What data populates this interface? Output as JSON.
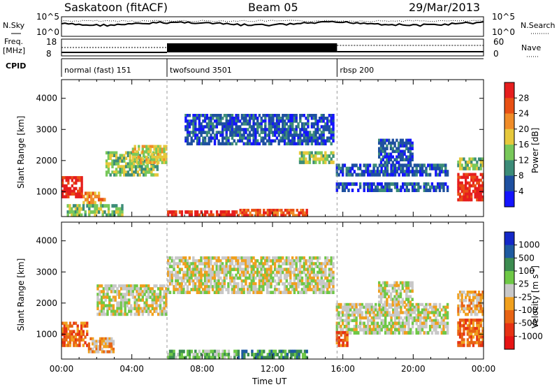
{
  "header": {
    "station": "Saskatoon (fitACF)",
    "beam": "Beam 05",
    "date": "29/Mar/2013"
  },
  "strip_labels": {
    "nsky": "N.Sky",
    "nsearch": "N.Search",
    "freq_line1": "Freq.",
    "freq_line2": "[MHz]",
    "nave": "Nave",
    "cpid": "CPID",
    "nsky_top": "10^5",
    "nsky_bottom": "10^0",
    "nsearch_top": "10^5",
    "nsearch_bottom": "10^0",
    "freq_top": "18",
    "freq_bottom": "8",
    "nave_top": "60",
    "nave_bottom": "0"
  },
  "cpid_segments": [
    {
      "label": "normal (fast) 151",
      "start_h": 0
    },
    {
      "label": "twofsound 3501",
      "start_h": 6.0
    },
    {
      "label": "rbsp 200",
      "start_h": 15.67
    }
  ],
  "chart_data": [
    {
      "type": "heatmap",
      "name": "Power",
      "ylabel": "Slant Range [km]",
      "xlabel": "",
      "xlim": [
        0,
        24
      ],
      "ylim": [
        200,
        4600
      ],
      "yticks": [
        "1000",
        "2000",
        "3000",
        "4000"
      ],
      "colorbar_label": "Power [dB]",
      "colorbar_ticks": [
        "4",
        "8",
        "12",
        "16",
        "20",
        "24",
        "28"
      ],
      "colors": [
        "#1414ff",
        "#1e50a0",
        "#3c8c78",
        "#78c85a",
        "#e6c83c",
        "#f08c28",
        "#e85014",
        "#e61e1e"
      ],
      "bands": [
        {
          "x": [
            0,
            1.2
          ],
          "y": [
            800,
            1500
          ],
          "level": 7
        },
        {
          "x": [
            1.2,
            2.5
          ],
          "y": [
            600,
            1000
          ],
          "level": 5
        },
        {
          "x": [
            0.3,
            3.5
          ],
          "y": [
            200,
            600
          ],
          "level": 3
        },
        {
          "x": [
            2.5,
            5.5
          ],
          "y": [
            1500,
            2300
          ],
          "level": 3
        },
        {
          "x": [
            4.0,
            6.0
          ],
          "y": [
            1900,
            2500
          ],
          "level": 4
        },
        {
          "x": [
            6.0,
            10.0
          ],
          "y": [
            200,
            400
          ],
          "level": 7
        },
        {
          "x": [
            10.0,
            14.0
          ],
          "y": [
            200,
            450
          ],
          "level": 6
        },
        {
          "x": [
            7.0,
            15.5
          ],
          "y": [
            2500,
            3500
          ],
          "level": 1
        },
        {
          "x": [
            13.5,
            15.5
          ],
          "y": [
            1900,
            2300
          ],
          "level": 3
        },
        {
          "x": [
            15.6,
            22.0
          ],
          "y": [
            1500,
            1900
          ],
          "level": 1
        },
        {
          "x": [
            15.6,
            22.0
          ],
          "y": [
            1000,
            1300
          ],
          "level": 1
        },
        {
          "x": [
            18.0,
            20.0
          ],
          "y": [
            1900,
            2700
          ],
          "level": 1
        },
        {
          "x": [
            22.5,
            24.0
          ],
          "y": [
            700,
            1600
          ],
          "level": 7
        },
        {
          "x": [
            22.5,
            24.0
          ],
          "y": [
            1700,
            2100
          ],
          "level": 3
        }
      ]
    },
    {
      "type": "heatmap",
      "name": "Velocity",
      "ylabel": "Slant Range [km]",
      "xlabel": "Time UT",
      "xlim": [
        0,
        24
      ],
      "ylim": [
        200,
        4600
      ],
      "yticks": [
        "1000",
        "2000",
        "3000",
        "4000"
      ],
      "xticks": [
        "00:00",
        "04:00",
        "08:00",
        "12:00",
        "16:00",
        "20:00",
        "00:00"
      ],
      "colorbar_label": "Velocity [m s^-1]",
      "colorbar_ticks": [
        "1000",
        "500",
        "100",
        "25",
        "-25",
        "-100",
        "-500",
        "-1000"
      ],
      "colors": [
        "#1428c8",
        "#1e5aa0",
        "#3c8c50",
        "#6ec846",
        "#c8c8c8",
        "#f0a01e",
        "#e86414",
        "#e63214",
        "#e61414"
      ],
      "bands": [
        {
          "x": [
            0,
            1.5
          ],
          "y": [
            600,
            1400
          ],
          "level": 6
        },
        {
          "x": [
            1.5,
            3.0
          ],
          "y": [
            400,
            900
          ],
          "level": 5
        },
        {
          "x": [
            2.0,
            6.0
          ],
          "y": [
            1600,
            2600
          ],
          "level": 4
        },
        {
          "x": [
            6.0,
            10.0
          ],
          "y": [
            200,
            500
          ],
          "level": 3
        },
        {
          "x": [
            10.0,
            14.0
          ],
          "y": [
            200,
            500
          ],
          "level": 2
        },
        {
          "x": [
            6.0,
            15.5
          ],
          "y": [
            2300,
            3500
          ],
          "level": 4
        },
        {
          "x": [
            15.6,
            22.0
          ],
          "y": [
            1400,
            2000
          ],
          "level": 4
        },
        {
          "x": [
            15.6,
            22.0
          ],
          "y": [
            1000,
            1400
          ],
          "level": 4
        },
        {
          "x": [
            15.6,
            16.3
          ],
          "y": [
            600,
            1100
          ],
          "level": 6
        },
        {
          "x": [
            18.0,
            20.0
          ],
          "y": [
            1900,
            2700
          ],
          "level": 4
        },
        {
          "x": [
            22.5,
            24.0
          ],
          "y": [
            600,
            1500
          ],
          "level": 6
        },
        {
          "x": [
            22.5,
            24.0
          ],
          "y": [
            1600,
            2400
          ],
          "level": 5
        }
      ]
    }
  ]
}
